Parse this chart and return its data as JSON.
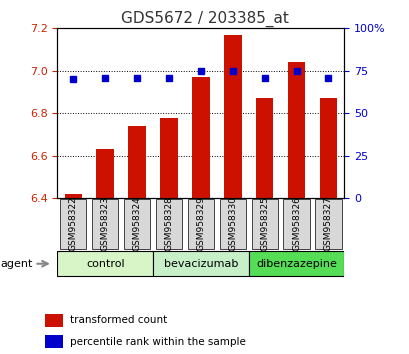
{
  "title": "GDS5672 / 203385_at",
  "samples": [
    "GSM958322",
    "GSM958323",
    "GSM958324",
    "GSM958328",
    "GSM958329",
    "GSM958330",
    "GSM958325",
    "GSM958326",
    "GSM958327"
  ],
  "transformed_counts": [
    6.42,
    6.63,
    6.74,
    6.78,
    6.97,
    7.17,
    6.87,
    7.04,
    6.87
  ],
  "percentile_ranks": [
    70,
    71,
    71,
    71,
    75,
    75,
    71,
    75,
    71
  ],
  "groups": [
    {
      "label": "control",
      "indices": [
        0,
        1,
        2
      ],
      "color": "#d8f5c8"
    },
    {
      "label": "bevacizumab",
      "indices": [
        3,
        4,
        5
      ],
      "color": "#c8f0c8"
    },
    {
      "label": "dibenzazepine",
      "indices": [
        6,
        7,
        8
      ],
      "color": "#55dd55"
    }
  ],
  "ylim_left": [
    6.4,
    7.2
  ],
  "ylim_right": [
    0,
    100
  ],
  "yticks_left": [
    6.4,
    6.6,
    6.8,
    7.0,
    7.2
  ],
  "yticks_right": [
    0,
    25,
    50,
    75,
    100
  ],
  "ytick_labels_right": [
    "0",
    "25",
    "50",
    "75",
    "100%"
  ],
  "bar_color": "#cc1100",
  "dot_color": "#0000cc",
  "bar_width": 0.55,
  "title_color": "#333333",
  "left_tick_color": "#cc2200",
  "right_tick_color": "#0000cc",
  "plot_bg_color": "#ffffff",
  "xtick_box_color": "#d8d8d8",
  "agent_label": "agent",
  "legend_bar_label": "transformed count",
  "legend_dot_label": "percentile rank within the sample",
  "dot_size": 5
}
